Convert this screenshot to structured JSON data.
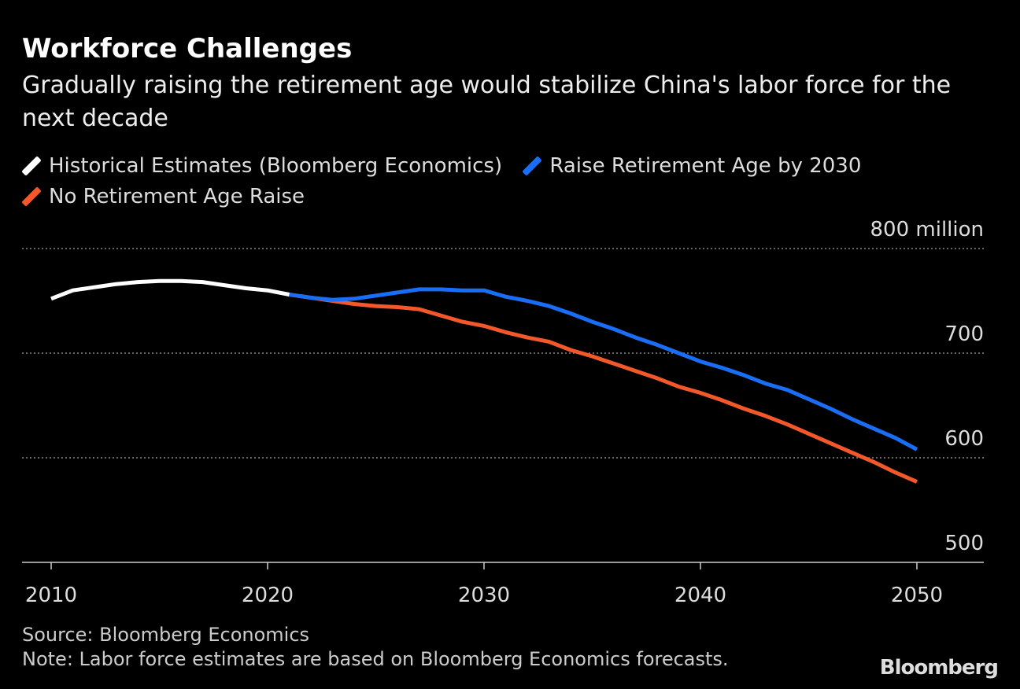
{
  "chart_data": {
    "type": "line",
    "title": "Workforce Challenges",
    "subtitle": "Gradually raising the retirement age would stabilize China's labor force for the next decade",
    "ylabel": "800 million",
    "ylim": [
      500,
      800
    ],
    "xlim": [
      2009,
      2053
    ],
    "yticks": [
      {
        "value": 800,
        "label": "800 million"
      },
      {
        "value": 700,
        "label": "700"
      },
      {
        "value": 600,
        "label": "600"
      },
      {
        "value": 500,
        "label": "500"
      }
    ],
    "xticks": [
      2010,
      2020,
      2030,
      2040,
      2050
    ],
    "grid": true,
    "legend_placement": "top-left",
    "series": [
      {
        "name": "Historical Estimates (Bloomberg Economics)",
        "color": "#ffffff",
        "x": [
          2010,
          2011,
          2012,
          2013,
          2014,
          2015,
          2016,
          2017,
          2018,
          2019,
          2020,
          2021
        ],
        "y": [
          752,
          760,
          763,
          766,
          768,
          769,
          769,
          768,
          765,
          762,
          760,
          756
        ]
      },
      {
        "name": "Raise Retirement Age by 2030",
        "color": "#1a6ef5",
        "x": [
          2021,
          2022,
          2023,
          2024,
          2025,
          2026,
          2027,
          2028,
          2029,
          2030,
          2031,
          2032,
          2033,
          2034,
          2035,
          2036,
          2037,
          2038,
          2039,
          2040,
          2041,
          2042,
          2043,
          2044,
          2045,
          2046,
          2047,
          2048,
          2049,
          2050
        ],
        "y": [
          756,
          753,
          751,
          752,
          755,
          758,
          761,
          761,
          760,
          760,
          754,
          750,
          745,
          738,
          730,
          723,
          715,
          708,
          700,
          692,
          686,
          679,
          671,
          665,
          656,
          647,
          637,
          628,
          619,
          608
        ]
      },
      {
        "name": "No Retirement Age Raise",
        "color": "#f2582a",
        "x": [
          2021,
          2022,
          2023,
          2024,
          2025,
          2026,
          2027,
          2028,
          2029,
          2030,
          2031,
          2032,
          2033,
          2034,
          2035,
          2036,
          2037,
          2038,
          2039,
          2040,
          2041,
          2042,
          2043,
          2044,
          2045,
          2046,
          2047,
          2048,
          2049,
          2050
        ],
        "y": [
          756,
          753,
          750,
          747,
          745,
          744,
          742,
          736,
          730,
          726,
          720,
          715,
          711,
          703,
          697,
          690,
          683,
          676,
          668,
          662,
          655,
          647,
          640,
          632,
          623,
          614,
          605,
          596,
          586,
          577
        ]
      }
    ]
  },
  "footer": {
    "source": "Source: Bloomberg Economics",
    "note": "Note: Labor force estimates are based on Bloomberg Economics forecasts."
  },
  "logo": "Bloomberg"
}
